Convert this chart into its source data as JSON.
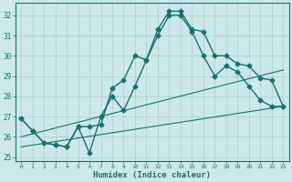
{
  "title": "",
  "xlabel": "Humidex (Indice chaleur)",
  "ylabel": "",
  "bg_color": "#cce8e8",
  "grid_color": "#aacccc",
  "line_color": "#1a7070",
  "xlim": [
    -0.5,
    23.5
  ],
  "ylim": [
    24.8,
    32.6
  ],
  "yticks": [
    25,
    26,
    27,
    28,
    29,
    30,
    31,
    32
  ],
  "xticks": [
    0,
    1,
    2,
    3,
    4,
    5,
    6,
    7,
    8,
    9,
    10,
    11,
    12,
    13,
    14,
    15,
    16,
    17,
    18,
    19,
    20,
    21,
    22,
    23
  ],
  "series1": {
    "x": [
      0,
      1,
      2,
      3,
      4,
      5,
      6,
      7,
      8,
      9,
      10,
      11,
      12,
      13,
      14,
      15,
      16,
      17,
      18,
      19,
      20,
      21,
      22,
      23
    ],
    "y": [
      26.9,
      26.3,
      25.7,
      25.6,
      25.5,
      26.5,
      26.5,
      26.6,
      28.4,
      28.8,
      30.0,
      29.8,
      31.3,
      32.2,
      32.2,
      31.3,
      31.2,
      30.0,
      30.0,
      29.6,
      29.5,
      28.9,
      28.8,
      27.5
    ]
  },
  "series2": {
    "x": [
      0,
      1,
      2,
      3,
      4,
      5,
      6,
      7,
      8,
      9,
      10,
      11,
      12,
      13,
      14,
      15,
      16,
      17,
      18,
      19,
      20,
      21,
      22,
      23
    ],
    "y": [
      26.9,
      26.3,
      25.7,
      25.6,
      25.5,
      26.5,
      25.2,
      27.0,
      28.0,
      27.3,
      28.5,
      29.8,
      31.0,
      32.0,
      32.0,
      31.2,
      30.0,
      29.0,
      29.5,
      29.2,
      28.5,
      27.8,
      27.5,
      27.5
    ]
  },
  "line1": {
    "x": [
      0,
      23
    ],
    "y": [
      25.5,
      27.5
    ]
  },
  "line2": {
    "x": [
      0,
      23
    ],
    "y": [
      26.0,
      29.3
    ]
  }
}
